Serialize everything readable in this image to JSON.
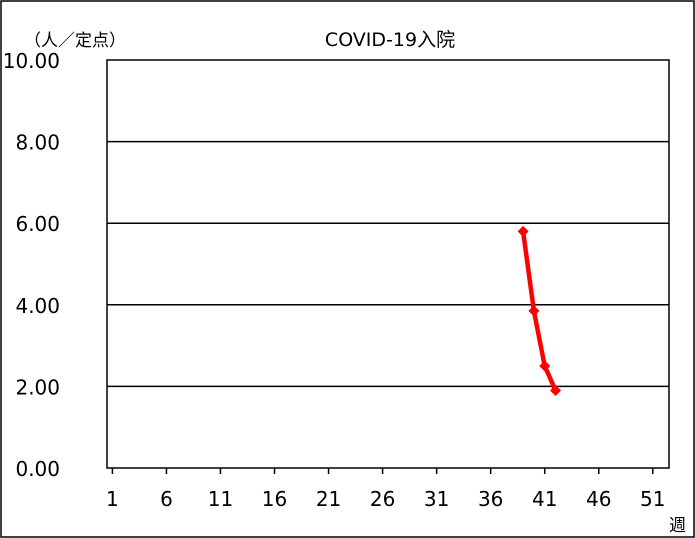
{
  "chart_data": {
    "type": "line",
    "title": "COVID-19入院",
    "ylabel": "（人／定点）",
    "xlabel": "週",
    "ylim": [
      0,
      10
    ],
    "y_ticks": [
      "0.00",
      "2.00",
      "4.00",
      "6.00",
      "8.00",
      "10.00"
    ],
    "y_tick_values": [
      0,
      2,
      4,
      6,
      8,
      10
    ],
    "xlim": [
      1,
      52
    ],
    "x_tick_labels": [
      "1",
      "6",
      "11",
      "16",
      "21",
      "26",
      "31",
      "36",
      "41",
      "46",
      "51"
    ],
    "x_tick_values": [
      1,
      6,
      11,
      16,
      21,
      26,
      31,
      36,
      41,
      46,
      51
    ],
    "grid": true,
    "legend": false,
    "series": [
      {
        "color": "#ff0000",
        "x": [
          39,
          40,
          41,
          42
        ],
        "y": [
          5.8,
          3.85,
          2.5,
          1.9
        ]
      }
    ]
  }
}
